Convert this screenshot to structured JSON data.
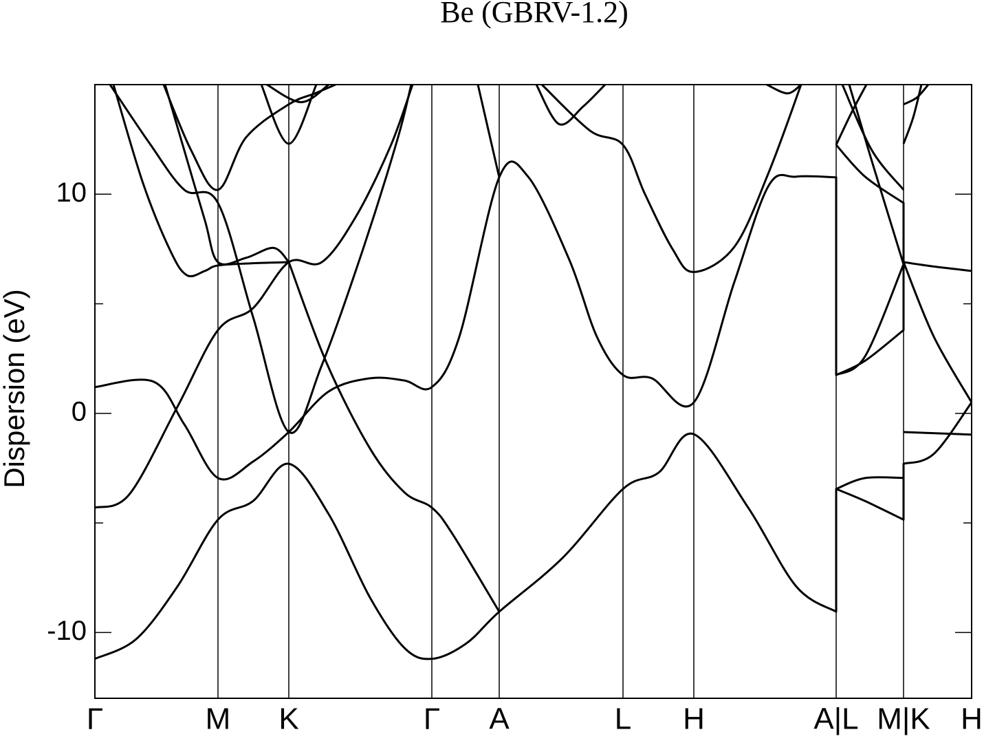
{
  "chart_data": {
    "type": "band-structure",
    "title": "Be (GBRV-1.2)",
    "y_label": "Dispersion (eV)",
    "xlim": [
      0,
      12.75
    ],
    "ylim": [
      -13,
      15
    ],
    "yticks": [
      -10,
      0,
      10
    ],
    "yminorticks": [
      -5,
      5
    ],
    "xticks": [
      {
        "value": 0,
        "label": "Γ"
      },
      {
        "value": 1.79,
        "label": "M"
      },
      {
        "value": 2.82,
        "label": "K"
      },
      {
        "value": 4.9,
        "label": "Γ"
      },
      {
        "value": 5.88,
        "label": "A"
      },
      {
        "value": 7.68,
        "label": "L"
      },
      {
        "value": 8.71,
        "label": "H"
      },
      {
        "value": 10.78,
        "label": "A|L"
      },
      {
        "value": 11.76,
        "label": "M|K"
      },
      {
        "value": 12.75,
        "label": "H"
      }
    ],
    "grid": true,
    "line_color": "#000000",
    "series": [
      {
        "x": [
          0,
          0.6,
          1.2,
          1.79,
          2.3,
          2.82,
          3.4,
          4.0,
          4.5,
          4.9,
          5.4,
          5.88,
          6.8,
          7.68,
          8.2,
          8.71,
          9.5,
          10.2,
          10.78,
          10.78,
          11.2,
          11.76,
          11.76,
          12.2,
          12.75
        ],
        "values": [
          -11.2,
          -10.3,
          -7.9,
          -4.85,
          -4.0,
          -2.3,
          -4.6,
          -8.4,
          -10.7,
          -11.2,
          -10.5,
          -9.05,
          -6.6,
          -3.45,
          -2.7,
          -0.95,
          -4.3,
          -7.9,
          -9.05,
          -3.45,
          -4.0,
          -4.85,
          -2.3,
          -1.85,
          0.5
        ]
      },
      {
        "x": [
          0,
          0.85,
          1.3,
          1.79,
          2.3,
          2.82,
          3.4,
          4.0,
          4.5,
          4.9,
          5.3,
          5.88,
          6.3,
          6.9,
          7.3,
          7.68,
          8.1,
          8.71,
          9.3,
          9.8,
          10.2,
          10.78,
          10.78,
          11.2,
          11.76,
          11.76,
          12.2,
          12.75
        ],
        "values": [
          1.2,
          1.45,
          -0.5,
          -2.95,
          -2.2,
          -0.85,
          1.0,
          1.6,
          1.5,
          1.2,
          3.5,
          10.77,
          10.8,
          7.0,
          3.5,
          1.75,
          1.6,
          0.5,
          6.0,
          10.4,
          10.8,
          10.77,
          1.75,
          2.4,
          3.8,
          6.9,
          6.7,
          6.5
        ]
      },
      {
        "x": [
          0,
          0.5,
          1.2,
          1.79,
          2.3,
          2.82,
          3.3,
          3.8,
          4.3,
          4.62
        ],
        "values": [
          -4.3,
          -3.7,
          0.3,
          3.8,
          4.8,
          6.9,
          6.9,
          9.0,
          12.2,
          15
        ]
      },
      {
        "x": [
          2.82,
          3.37,
          4.0,
          4.5,
          4.9,
          5.2,
          5.88
        ],
        "values": [
          6.9,
          2.3,
          -1.6,
          -3.6,
          -4.3,
          -5.5,
          -9.05
        ]
      },
      {
        "x": [
          0.22,
          0.8,
          1.3,
          1.79,
          2.3,
          2.82,
          3.3,
          3.9,
          4.4,
          4.6
        ],
        "values": [
          15,
          12.3,
          10.2,
          9.6,
          4.4,
          -0.85,
          2.2,
          7.5,
          12.5,
          15
        ]
      },
      {
        "x": [
          0.27,
          0.7,
          1.1,
          1.34,
          1.6,
          1.79,
          2.3,
          2.82
        ],
        "values": [
          15,
          10.5,
          7.4,
          6.3,
          6.5,
          6.75,
          6.85,
          6.9
        ]
      },
      {
        "x": [
          1.02,
          1.3,
          1.6,
          1.79,
          2.2,
          2.6,
          2.82
        ],
        "values": [
          15,
          12.0,
          8.8,
          6.9,
          7.1,
          7.55,
          6.9
        ]
      },
      {
        "x": [
          1.0,
          1.4,
          1.79,
          2.2,
          2.82,
          3.2,
          3.5
        ],
        "values": [
          15,
          12.0,
          10.2,
          12.6,
          14.1,
          14.6,
          15
        ]
      },
      {
        "x": [
          2.42,
          2.82,
          3.22
        ],
        "values": [
          15,
          12.3,
          15
        ]
      },
      {
        "x": [
          2.5,
          3.0,
          3.4
        ],
        "values": [
          15,
          14.2,
          15
        ]
      },
      {
        "x": [
          5.57,
          5.88
        ],
        "values": [
          15,
          10.77
        ]
      },
      {
        "x": [
          6.42,
          6.75,
          7.1,
          7.42
        ],
        "values": [
          15,
          13.2,
          14.0,
          15
        ]
      },
      {
        "x": [
          6.5,
          7.2,
          7.68,
          8.0,
          8.4,
          8.71,
          9.3,
          9.8,
          10.27
        ],
        "values": [
          15,
          12.9,
          12.25,
          10.0,
          7.5,
          6.45,
          7.6,
          11.0,
          15
        ]
      },
      {
        "x": [
          9.77,
          10.07,
          10.27
        ],
        "values": [
          15,
          14.6,
          15
        ]
      },
      {
        "x": [
          10.78,
          11.0,
          11.22
        ],
        "values": [
          12.25,
          13.7,
          15
        ]
      },
      {
        "x": [
          10.78,
          11.2,
          11.76,
          11.76,
          12.2,
          12.75
        ],
        "values": [
          12.25,
          10.8,
          9.6,
          6.9,
          3.5,
          0.5
        ]
      },
      {
        "x": [
          10.87,
          11.3,
          11.76
        ],
        "values": [
          15,
          12.0,
          10.2
        ]
      },
      {
        "x": [
          10.97,
          11.3,
          11.76
        ],
        "values": [
          15,
          11.5,
          6.8
        ]
      },
      {
        "x": [
          10.78,
          11.2,
          11.76
        ],
        "values": [
          1.75,
          2.6,
          6.8
        ]
      },
      {
        "x": [
          10.78,
          11.2,
          11.76
        ],
        "values": [
          -3.45,
          -2.95,
          -2.95
        ]
      },
      {
        "x": [
          11.76,
          12.75
        ],
        "values": [
          -0.85,
          -0.97
        ]
      },
      {
        "x": [
          11.76,
          11.95,
          12.12
        ],
        "values": [
          14.1,
          14.4,
          15
        ]
      },
      {
        "x": [
          11.76,
          11.9,
          12.02
        ],
        "values": [
          12.3,
          13.5,
          15
        ]
      }
    ]
  }
}
